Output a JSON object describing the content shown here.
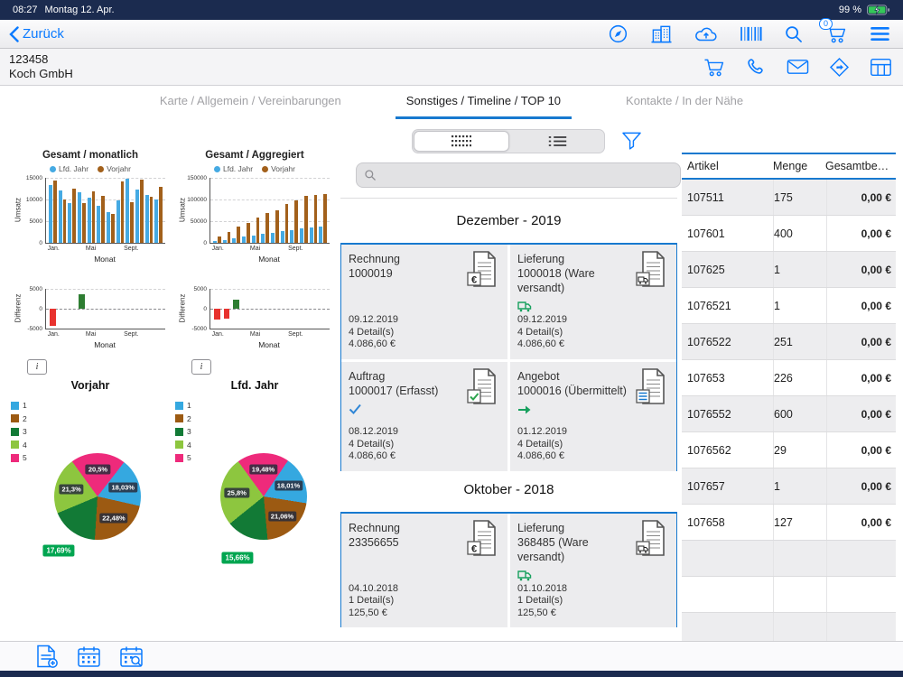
{
  "colors": {
    "accent": "#0a7aff",
    "line_blue": "#1779cf",
    "navy": "#1b2b4f",
    "bar_blue": "#45aae3",
    "bar_brown": "#a2601b",
    "diff_red": "#e8322e",
    "diff_green": "#2e7d32",
    "pie_blue": "#35a8e0",
    "pie_brown": "#9c5a12",
    "pie_darkgreen": "#127a36",
    "pie_lightgreen": "#8dc63f",
    "pie_pink": "#ee2a7b",
    "badge_green": "#00a550"
  },
  "status_bar": {
    "time": "08:27",
    "date": "Montag 12. Apr.",
    "battery_percent": "99 %"
  },
  "nav": {
    "back_label": "Zurück",
    "cart_badge": "0",
    "icons": [
      "compass",
      "buildings",
      "cloud-upload",
      "barcode",
      "search",
      "cart",
      "menu"
    ]
  },
  "customer": {
    "number": "123458",
    "name": "Koch GmbH",
    "icons": [
      "cart",
      "phone",
      "mail",
      "directions",
      "table"
    ]
  },
  "tabs": [
    {
      "label": "Karte / Allgemein / Vereinbarungen",
      "active": false
    },
    {
      "label": "Sonstiges / Timeline / TOP 10",
      "active": true
    },
    {
      "label": "Kontakte / In der Nähe",
      "active": false
    }
  ],
  "ui": {
    "info_label": "i"
  },
  "chart_data": [
    {
      "id": "monthly",
      "type": "bar",
      "title": "Gesamt / monatlich",
      "ylabel": "Umsatz",
      "xlabel": "Monat",
      "ylim": [
        0,
        15000
      ],
      "yticks": [
        "15000",
        "10000",
        "5000",
        "0"
      ],
      "xticks": [
        {
          "label": "Jan.",
          "pos": 2
        },
        {
          "label": "Mai",
          "pos": 34
        },
        {
          "label": "Sept.",
          "pos": 66
        }
      ],
      "legend": [
        {
          "name": "Lfd. Jahr",
          "color_key": "bar_blue"
        },
        {
          "name": "Vorjahr",
          "color_key": "bar_brown"
        }
      ],
      "categories": [
        "Jan",
        "Feb",
        "Mär",
        "Apr",
        "Mai",
        "Jun",
        "Jul",
        "Aug",
        "Sep",
        "Okt",
        "Nov",
        "Dez"
      ],
      "series": [
        {
          "name": "Lfd. Jahr",
          "values": [
            13400,
            12100,
            9200,
            11600,
            10400,
            8600,
            7100,
            9800,
            14700,
            12300,
            11100,
            10100
          ]
        },
        {
          "name": "Vorjahr",
          "values": [
            14300,
            10100,
            12600,
            9100,
            11900,
            10900,
            6600,
            14100,
            9300,
            14600,
            10600,
            12900
          ]
        }
      ]
    },
    {
      "id": "aggregated",
      "type": "bar",
      "title": "Gesamt / Aggregiert",
      "ylabel": "Umsatz",
      "xlabel": "Monat",
      "ylim": [
        0,
        150000
      ],
      "yticks": [
        "150000",
        "100000",
        "50000",
        "0"
      ],
      "xticks": [
        {
          "label": "Jan.",
          "pos": 2
        },
        {
          "label": "Mai",
          "pos": 34
        },
        {
          "label": "Sept.",
          "pos": 66
        }
      ],
      "legend": [
        {
          "name": "Lfd. Jahr",
          "color_key": "bar_blue"
        },
        {
          "name": "Vorjahr",
          "color_key": "bar_brown"
        }
      ],
      "categories": [
        "Jan",
        "Feb",
        "Mär",
        "Apr",
        "Mai",
        "Jun",
        "Jul",
        "Aug",
        "Sep",
        "Okt",
        "Nov",
        "Dez"
      ],
      "series": [
        {
          "name": "Lfd. Jahr",
          "values": [
            3500,
            7200,
            10600,
            14100,
            17400,
            20600,
            23800,
            27000,
            29800,
            32400,
            34800,
            37000
          ]
        },
        {
          "name": "Vorjahr",
          "values": [
            14300,
            24400,
            37000,
            46100,
            58000,
            68900,
            75500,
            89600,
            98900,
            108000,
            110500,
            113400
          ]
        }
      ]
    },
    {
      "id": "diff-monthly",
      "type": "bar",
      "variant": "diff",
      "title": "",
      "ylabel": "Differenz",
      "xlabel": "Monat",
      "ylim": [
        -5000,
        5000
      ],
      "yticks": [
        "5000",
        "0",
        "-5000"
      ],
      "xticks": [
        {
          "label": "Jan.",
          "pos": 2
        },
        {
          "label": "Mai",
          "pos": 34
        },
        {
          "label": "Sept.",
          "pos": 66
        }
      ],
      "values": [
        -4400,
        0,
        0,
        3600,
        0,
        0,
        0,
        0,
        0,
        0,
        0,
        0
      ]
    },
    {
      "id": "diff-aggregated",
      "type": "bar",
      "variant": "diff",
      "title": "",
      "ylabel": "Differenz",
      "xlabel": "Monat",
      "ylim": [
        -5000,
        5000
      ],
      "yticks": [
        "5000",
        "0",
        "-5000"
      ],
      "xticks": [
        {
          "label": "Jan.",
          "pos": 2
        },
        {
          "label": "Mai",
          "pos": 34
        },
        {
          "label": "Sept.",
          "pos": 66
        }
      ],
      "values": [
        -2700,
        -2500,
        2300,
        0,
        0,
        0,
        0,
        0,
        0,
        0,
        0,
        0
      ]
    },
    {
      "id": "pie-vorjahr",
      "type": "pie",
      "title": "Vorjahr",
      "start_angle": -36,
      "legend": [
        {
          "label": "1",
          "color_key": "pie_blue"
        },
        {
          "label": "2",
          "color_key": "pie_brown"
        },
        {
          "label": "3",
          "color_key": "pie_darkgreen"
        },
        {
          "label": "4",
          "color_key": "pie_lightgreen"
        },
        {
          "label": "5",
          "color_key": "pie_pink"
        }
      ],
      "slices": [
        {
          "legend": "5",
          "value": 20.5,
          "display": "20,5%",
          "color_key": "pie_pink"
        },
        {
          "legend": "1",
          "value": 18.03,
          "display": "18,03%",
          "color_key": "pie_blue"
        },
        {
          "legend": "2",
          "value": 22.48,
          "display": "22,48%",
          "color_key": "pie_brown"
        },
        {
          "legend": "3",
          "value": 17.69,
          "display": "17,69%",
          "color_key": "pie_darkgreen",
          "outside": true
        },
        {
          "legend": "4",
          "value": 21.3,
          "display": "21,3%",
          "color_key": "pie_lightgreen"
        }
      ]
    },
    {
      "id": "pie-lfdjahr",
      "type": "pie",
      "title": "Lfd. Jahr",
      "start_angle": -36,
      "legend": [
        {
          "label": "1",
          "color_key": "pie_blue"
        },
        {
          "label": "2",
          "color_key": "pie_brown"
        },
        {
          "label": "3",
          "color_key": "pie_darkgreen"
        },
        {
          "label": "4",
          "color_key": "pie_lightgreen"
        },
        {
          "label": "5",
          "color_key": "pie_pink"
        }
      ],
      "slices": [
        {
          "legend": "5",
          "value": 19.48,
          "display": "19,48%",
          "color_key": "pie_pink"
        },
        {
          "legend": "1",
          "value": 18.01,
          "display": "18,01%",
          "color_key": "pie_blue"
        },
        {
          "legend": "2",
          "value": 21.06,
          "display": "21,06%",
          "color_key": "pie_brown"
        },
        {
          "legend": "3",
          "value": 15.66,
          "display": "15,66%",
          "color_key": "pie_darkgreen",
          "outside": true
        },
        {
          "legend": "4",
          "value": 25.8,
          "display": "25,8%",
          "color_key": "pie_lightgreen"
        }
      ]
    }
  ],
  "timeline": {
    "view_toggle": [
      "grid",
      "list"
    ],
    "search_placeholder": "",
    "groups": [
      {
        "title": "Dezember - 2019",
        "cards": [
          {
            "type": "Rechnung",
            "number": "1000019",
            "doc_icon": "invoice",
            "status_icon": null,
            "date": "09.12.2019",
            "details": "4 Detail(s)",
            "amount": "4.086,60 €"
          },
          {
            "type": "Lieferung",
            "number": "1000018 (Ware versandt)",
            "doc_icon": "delivery",
            "status_icon": "truck-green",
            "date": "09.12.2019",
            "details": "4 Detail(s)",
            "amount": "4.086,60 €"
          },
          {
            "type": "Auftrag",
            "number": "1000017 (Erfasst)",
            "doc_icon": "order",
            "status_icon": "check-blue",
            "date": "08.12.2019",
            "details": "4 Detail(s)",
            "amount": "4.086,60 €"
          },
          {
            "type": "Angebot",
            "number": "1000016 (Übermittelt)",
            "doc_icon": "offer",
            "status_icon": "arrow-green",
            "date": "01.12.2019",
            "details": "4 Detail(s)",
            "amount": "4.086,60 €"
          }
        ]
      },
      {
        "title": "Oktober - 2018",
        "cards": [
          {
            "type": "Rechnung",
            "number": "23356655",
            "doc_icon": "invoice",
            "status_icon": null,
            "date": "04.10.2018",
            "details": "1 Detail(s)",
            "amount": "125,50 €"
          },
          {
            "type": "Lieferung",
            "number": "368485 (Ware versandt)",
            "doc_icon": "delivery",
            "status_icon": "truck-green",
            "date": "01.10.2018",
            "details": "1 Detail(s)",
            "amount": "125,50 €"
          }
        ]
      }
    ]
  },
  "table": {
    "columns": [
      "Artikel",
      "Menge",
      "Gesamtbet…"
    ],
    "rows": [
      [
        "107511",
        "175",
        "0,00 €"
      ],
      [
        "107601",
        "400",
        "0,00 €"
      ],
      [
        "107625",
        "1",
        "0,00 €"
      ],
      [
        "1076521",
        "1",
        "0,00 €"
      ],
      [
        "1076522",
        "251",
        "0,00 €"
      ],
      [
        "107653",
        "226",
        "0,00 €"
      ],
      [
        "1076552",
        "600",
        "0,00 €"
      ],
      [
        "1076562",
        "29",
        "0,00 €"
      ],
      [
        "107657",
        "1",
        "0,00 €"
      ],
      [
        "107658",
        "127",
        "0,00 €"
      ]
    ],
    "empty_rows": 3
  },
  "toolbar": {
    "icons": [
      "new-document",
      "calendar",
      "calendar-search"
    ]
  }
}
